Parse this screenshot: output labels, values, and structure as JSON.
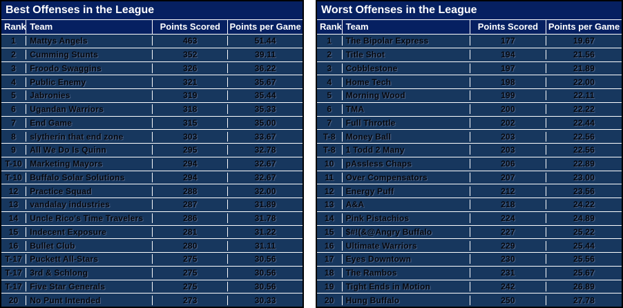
{
  "colors": {
    "title_bg": "#062061",
    "header_bg": "#062061",
    "row_bg": "#17375E",
    "grid_line": "#ffffff",
    "outer_border": "#000000",
    "header_text": "#ffffff",
    "row_text": "#05070d"
  },
  "tables": [
    {
      "title": "Best Offenses in the League",
      "columns": [
        "Rank",
        "Team",
        "Points Scored",
        "Points per Game"
      ],
      "rows": [
        [
          "1",
          "Mattys Angels",
          "463",
          "51.44"
        ],
        [
          "2",
          "Cumming Stunts",
          "352",
          "39.11"
        ],
        [
          "3",
          "Froodo Swaggins",
          "326",
          "36.22"
        ],
        [
          "4",
          "Public Enemy",
          "321",
          "35.67"
        ],
        [
          "5",
          "Jabronies",
          "319",
          "35.44"
        ],
        [
          "6",
          "Ugandan Warriors",
          "318",
          "35.33"
        ],
        [
          "7",
          "End Game",
          "315",
          "35.00"
        ],
        [
          "8",
          "slytherin that end zone",
          "303",
          "33.67"
        ],
        [
          "9",
          "All We Do Is Quinn",
          "295",
          "32.78"
        ],
        [
          "T-10",
          "Marketing Mayors",
          "294",
          "32.67"
        ],
        [
          "T-10",
          "Buffalo Solar Solutions",
          "294",
          "32.67"
        ],
        [
          "12",
          "Practice Squad",
          "288",
          "32.00"
        ],
        [
          "13",
          "vandalay industries",
          "287",
          "31.89"
        ],
        [
          "14",
          "Uncle Rico's Time Travelers",
          "286",
          "31.78"
        ],
        [
          "15",
          "Indecent Exposure",
          "281",
          "31.22"
        ],
        [
          "16",
          "Bullet Club",
          "280",
          "31.11"
        ],
        [
          "T-17",
          "Puckett All-Stars",
          "275",
          "30.56"
        ],
        [
          "T-17",
          "3rd & Schlong",
          "275",
          "30.56"
        ],
        [
          "T-17",
          "Five Star Generals",
          "275",
          "30.56"
        ],
        [
          "20",
          "No Punt Intended",
          "273",
          "30.33"
        ]
      ]
    },
    {
      "title": "Worst Offenses in the League",
      "columns": [
        "Rank",
        "Team",
        "Points Scored",
        "Points per Game"
      ],
      "rows": [
        [
          "1",
          "The Bipolar Express",
          "177",
          "19.67"
        ],
        [
          "2",
          "Title Shot",
          "194",
          "21.56"
        ],
        [
          "3",
          "Cobblestone",
          "197",
          "21.89"
        ],
        [
          "4",
          "Home Tech",
          "198",
          "22.00"
        ],
        [
          "5",
          "Morning Wood",
          "199",
          "22.11"
        ],
        [
          "6",
          "TMA",
          "200",
          "22.22"
        ],
        [
          "7",
          "Full Throttle",
          "202",
          "22.44"
        ],
        [
          "T-8",
          "Money Ball",
          "203",
          "22.56"
        ],
        [
          "T-8",
          "1 Todd 2 Many",
          "203",
          "22.56"
        ],
        [
          "10",
          "pAssless Chaps",
          "206",
          "22.89"
        ],
        [
          "11",
          "Over Compensators",
          "207",
          "23.00"
        ],
        [
          "12",
          "Energy Puff",
          "212",
          "23.56"
        ],
        [
          "13",
          "A&A",
          "218",
          "24.22"
        ],
        [
          "14",
          "Pink Pistachios",
          "224",
          "24.89"
        ],
        [
          "15",
          "$#!(&@Angry Buffalo",
          "227",
          "25.22"
        ],
        [
          "16",
          "Ultimate Warriors",
          "229",
          "25.44"
        ],
        [
          "17",
          "Eyes Downtown",
          "230",
          "25.56"
        ],
        [
          "18",
          "The Rambos",
          "231",
          "25.67"
        ],
        [
          "19",
          "Tight Ends in Motion",
          "242",
          "26.89"
        ],
        [
          "20",
          "Hung Buffalo",
          "250",
          "27.78"
        ]
      ]
    }
  ]
}
